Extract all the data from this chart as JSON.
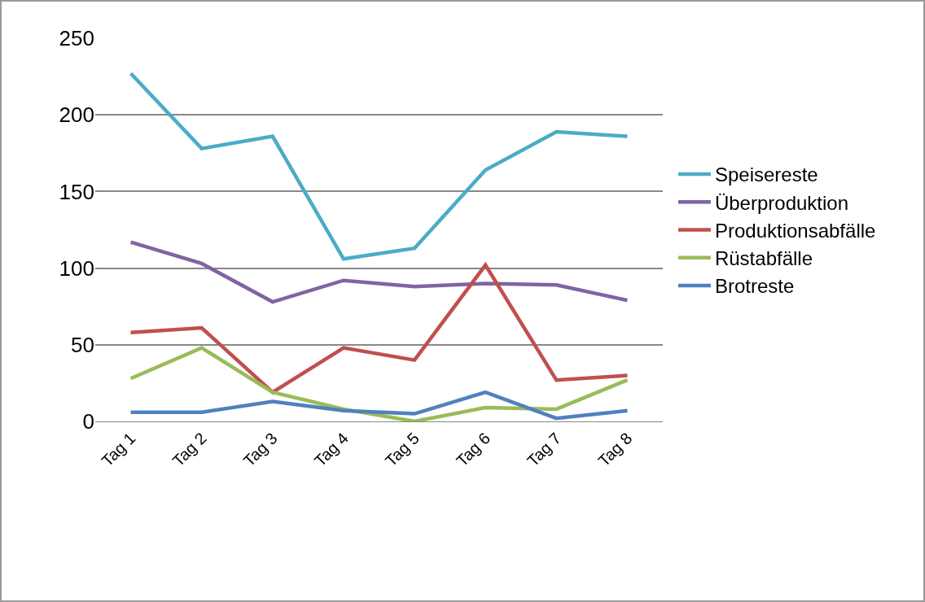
{
  "chart_data": {
    "type": "line",
    "categories": [
      "Tag 1",
      "Tag 2",
      "Tag 3",
      "Tag 4",
      "Tag 5",
      "Tag 6",
      "Tag 7",
      "Tag 8"
    ],
    "series": [
      {
        "name": "Speisereste",
        "color": "#4bacc6",
        "values": [
          227,
          178,
          186,
          106,
          113,
          164,
          189,
          186
        ]
      },
      {
        "name": "Überproduktion",
        "color": "#8064a2",
        "values": [
          117,
          103,
          78,
          92,
          88,
          90,
          89,
          79
        ]
      },
      {
        "name": "Produktionsabfälle",
        "color": "#c0504d",
        "values": [
          58,
          61,
          19,
          48,
          40,
          102,
          27,
          30
        ]
      },
      {
        "name": "Rüstabfälle",
        "color": "#9bbb59",
        "values": [
          28,
          48,
          19,
          8,
          0,
          9,
          8,
          27
        ]
      },
      {
        "name": "Brotreste",
        "color": "#4f81bd",
        "values": [
          6,
          6,
          13,
          7,
          5,
          19,
          2,
          7
        ]
      }
    ],
    "ylim": [
      0,
      250
    ],
    "yticks": [
      0,
      50,
      100,
      150,
      200,
      250
    ],
    "grid": "y",
    "legend": "right",
    "marker": "none",
    "line_style": "solid"
  }
}
